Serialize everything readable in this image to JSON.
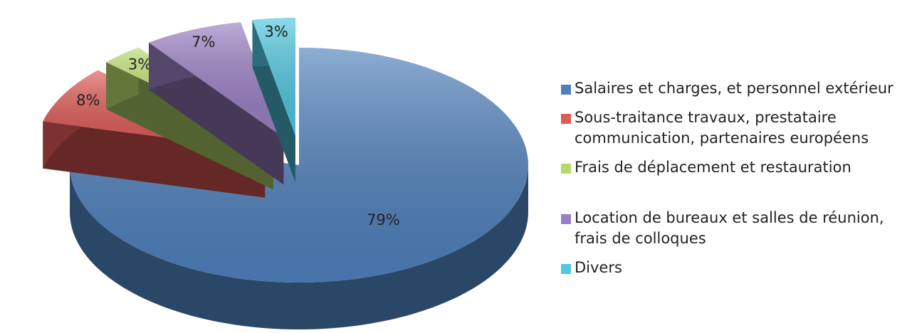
{
  "chart_data": {
    "type": "pie",
    "categories": [
      "Salaires et charges, et personnel extérieur",
      "Sous-traitance travaux, prestataire communication, partenaires européens",
      "Frais de déplacement et restauration",
      "Location de bureaux et salles de réunion, frais de colloques",
      "Divers"
    ],
    "values": [
      79,
      8,
      3,
      7,
      3
    ],
    "value_labels": [
      "79%",
      "8%",
      "3%",
      "7%",
      "3%"
    ],
    "colors": [
      "#4f81bd",
      "#e05a57",
      "#b6d96a",
      "#9b7fc4",
      "#4fc8e0"
    ],
    "legend": "right"
  }
}
